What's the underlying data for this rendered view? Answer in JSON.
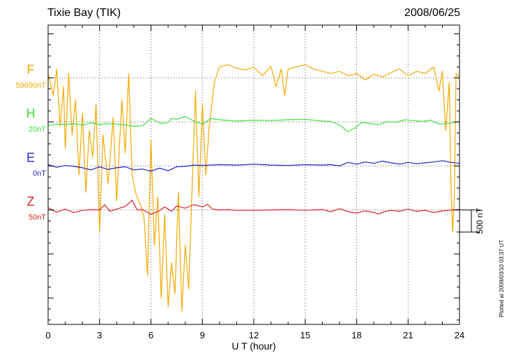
{
  "header": {
    "station": "Tixie Bay (TIK)",
    "date": "2008/06/25"
  },
  "footer": {
    "plotted": "Plotted at 2009/03/10 03:37 UT",
    "scale_bar": "500 nT"
  },
  "chart_data": {
    "type": "line",
    "title": "Tixie Bay (TIK)",
    "date": "2008/06/25",
    "xlabel": "U T (hour)",
    "xlim": [
      0,
      24
    ],
    "xticks": [
      "0",
      "3",
      "6",
      "9",
      "12",
      "15",
      "18",
      "21",
      "24"
    ],
    "ylim_nT": [
      -3600,
      3200
    ],
    "grid": true,
    "scale_bar_nT": 500,
    "series": [
      {
        "name": "F",
        "baseline_label": "59690nT",
        "baseline_nT": 2000,
        "color": "#f5a800",
        "x": [
          0.0,
          0.3,
          0.5,
          0.7,
          0.9,
          1.0,
          1.2,
          1.4,
          1.6,
          1.8,
          2.0,
          2.2,
          2.4,
          2.6,
          2.8,
          3.0,
          3.2,
          3.5,
          3.8,
          4.0,
          4.3,
          4.5,
          4.7,
          4.9,
          5.1,
          5.4,
          5.6,
          5.8,
          6.0,
          6.2,
          6.4,
          6.6,
          6.8,
          7.0,
          7.2,
          7.4,
          7.6,
          7.8,
          8.0,
          8.2,
          8.4,
          8.6,
          8.8,
          9.0,
          9.2,
          9.4,
          9.7,
          10.0,
          10.5,
          11.0,
          11.5,
          12.0,
          12.5,
          13.0,
          13.3,
          13.6,
          13.8,
          14.0,
          14.5,
          15.0,
          15.5,
          16.0,
          16.5,
          17.0,
          17.5,
          18.0,
          18.5,
          19.0,
          19.5,
          20.0,
          20.5,
          21.0,
          21.5,
          22.0,
          22.5,
          22.8,
          23.0,
          23.2,
          23.4,
          23.5,
          23.6,
          23.7,
          23.8,
          24.0
        ],
        "y": [
          2100,
          1600,
          2200,
          900,
          1800,
          400,
          2100,
          700,
          1500,
          -200,
          1200,
          -600,
          800,
          200,
          1400,
          -1500,
          700,
          -400,
          1100,
          -800,
          1500,
          300,
          2100,
          -200,
          -600,
          -900,
          -1200,
          -2500,
          600,
          -1800,
          -700,
          -3000,
          -1100,
          -3200,
          -2200,
          -2900,
          -600,
          -3300,
          -1800,
          -2800,
          -500,
          1700,
          -700,
          1400,
          -200,
          900,
          1900,
          2250,
          2300,
          2220,
          2180,
          2240,
          2050,
          2260,
          1800,
          2200,
          1600,
          2200,
          2250,
          2300,
          2200,
          2150,
          2100,
          2150,
          2050,
          2100,
          1950,
          2080,
          2020,
          2120,
          2200,
          2050,
          2150,
          2100,
          2250,
          1700,
          2150,
          800,
          1900,
          -400,
          -1500,
          -700,
          2100,
          2000
        ]
      },
      {
        "name": "H",
        "baseline_label": "20nT",
        "baseline_nT": 1000,
        "color": "#3de13d",
        "x": [
          0.0,
          0.5,
          1.0,
          1.5,
          2.0,
          2.5,
          3.0,
          3.5,
          4.0,
          4.5,
          5.0,
          5.5,
          6.0,
          6.3,
          6.6,
          7.0,
          7.2,
          7.5,
          8.0,
          8.5,
          9.0,
          9.5,
          10.0,
          11.0,
          12.0,
          13.0,
          14.0,
          15.0,
          16.0,
          16.5,
          17.0,
          17.5,
          17.9,
          18.3,
          18.8,
          19.3,
          19.8,
          20.3,
          20.8,
          21.3,
          21.8,
          22.3,
          22.8,
          23.3,
          24.0
        ],
        "y": [
          920,
          950,
          940,
          960,
          930,
          980,
          940,
          960,
          950,
          930,
          900,
          910,
          1080,
          1020,
          960,
          990,
          1080,
          1060,
          1120,
          1020,
          950,
          1080,
          1050,
          1020,
          1040,
          1030,
          1050,
          1060,
          1020,
          1010,
          930,
          780,
          860,
          990,
          960,
          940,
          1010,
          990,
          1050,
          1030,
          1010,
          1040,
          950,
          960,
          1010
        ]
      },
      {
        "name": "E",
        "baseline_label": "0nT",
        "baseline_nT": 0,
        "color": "#2222cc",
        "x": [
          0.0,
          0.5,
          1.0,
          1.5,
          2.0,
          2.5,
          3.0,
          3.5,
          4.0,
          4.5,
          5.0,
          5.5,
          6.0,
          6.5,
          7.0,
          7.5,
          8.0,
          8.5,
          9.0,
          10.0,
          11.0,
          12.0,
          13.0,
          14.0,
          15.0,
          16.0,
          16.5,
          17.0,
          17.5,
          18.0,
          18.5,
          19.0,
          19.5,
          20.0,
          20.5,
          21.0,
          21.5,
          22.0,
          22.5,
          23.0,
          23.5,
          24.0
        ],
        "y": [
          30,
          -30,
          10,
          -10,
          -40,
          -90,
          -20,
          -80,
          -40,
          -20,
          -90,
          -70,
          -120,
          -50,
          -110,
          -20,
          -10,
          20,
          10,
          30,
          20,
          40,
          20,
          10,
          30,
          20,
          30,
          0,
          80,
          40,
          90,
          60,
          110,
          70,
          40,
          80,
          50,
          70,
          90,
          120,
          80,
          60
        ]
      },
      {
        "name": "Z",
        "baseline_label": "50nT",
        "baseline_nT": -1000,
        "color": "#dd2222",
        "x": [
          0.0,
          0.5,
          1.0,
          1.5,
          2.0,
          2.5,
          3.0,
          3.3,
          3.6,
          4.0,
          4.5,
          4.9,
          5.2,
          5.5,
          6.0,
          6.4,
          6.8,
          7.2,
          7.5,
          8.0,
          8.5,
          9.0,
          9.3,
          9.6,
          10.0,
          10.5,
          11.0,
          12.0,
          13.0,
          14.0,
          15.0,
          16.0,
          16.5,
          17.0,
          17.5,
          18.0,
          18.5,
          19.0,
          19.3,
          19.6,
          20.0,
          20.5,
          21.0,
          21.5,
          22.0,
          22.5,
          23.0,
          23.5,
          24.0
        ],
        "y": [
          -950,
          -1050,
          -980,
          -1060,
          -1010,
          -990,
          -1000,
          -880,
          -1030,
          -980,
          -920,
          -780,
          -1000,
          -990,
          -1100,
          -1040,
          -930,
          -1030,
          -910,
          -960,
          -880,
          -930,
          -870,
          -980,
          -1000,
          -990,
          -1010,
          -1010,
          -1000,
          -990,
          -1010,
          -990,
          -1040,
          -970,
          -1040,
          -1070,
          -1020,
          -1060,
          -1090,
          -1040,
          -1010,
          -1030,
          -980,
          -1030,
          -1010,
          -1060,
          -1020,
          -1000,
          -990
        ]
      }
    ]
  }
}
